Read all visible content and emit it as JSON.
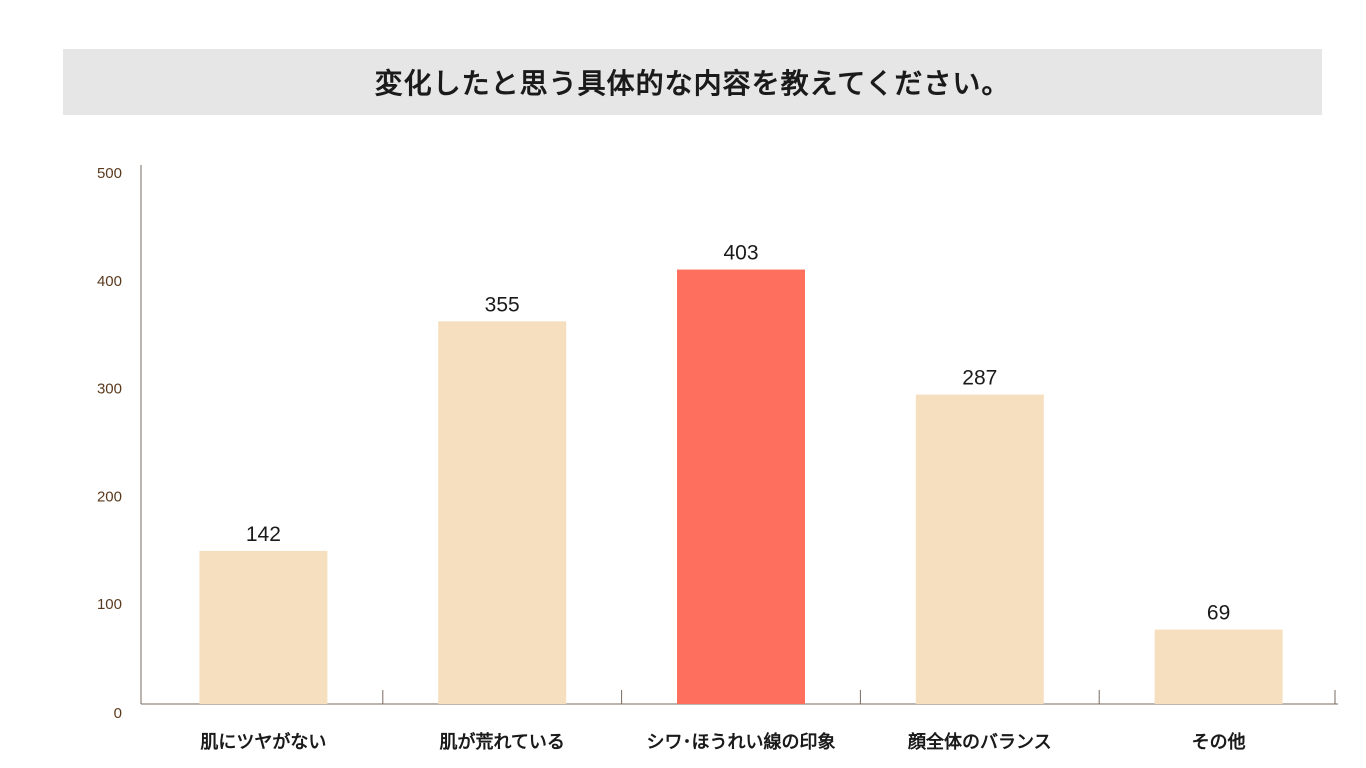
{
  "title": "変化したと思う具体的な内容を教えてください。",
  "colors": {
    "bar_default": "#f5dfbf",
    "bar_highlight": "#ff6f5e",
    "axis": "#7a6a5e",
    "title_bg": "#e6e6e6"
  },
  "chart_data": {
    "type": "bar",
    "title": "変化したと思う具体的な内容を教えてください。",
    "categories": [
      "肌にツヤがない",
      "肌が荒れている",
      "シワ･ほうれい線の印象",
      "顔全体のバランス",
      "その他"
    ],
    "values": [
      142,
      355,
      403,
      287,
      69
    ],
    "value_labels": [
      "142",
      "355",
      "403",
      "287",
      "69"
    ],
    "highlight_index": 2,
    "ylim": [
      0,
      500
    ],
    "yticks": [
      0,
      100,
      200,
      300,
      400,
      500
    ],
    "xlabel": "",
    "ylabel": "",
    "grid": false,
    "legend": "none"
  }
}
